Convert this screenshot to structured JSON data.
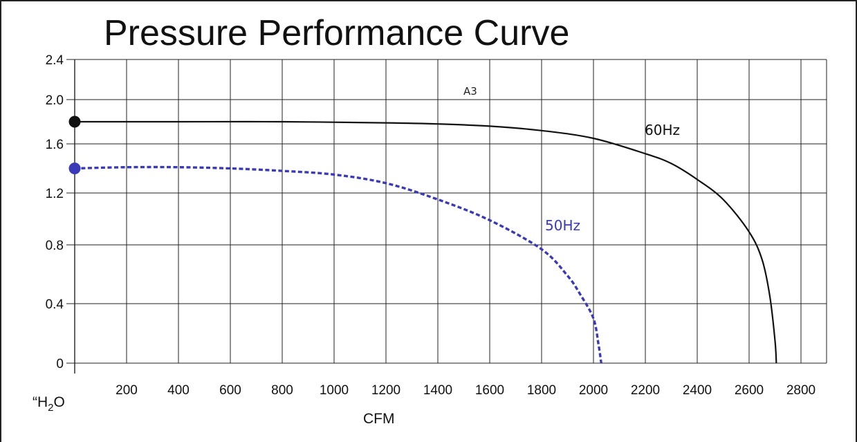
{
  "chart_data": {
    "type": "line",
    "title": "Pressure  Performance Curve",
    "xlabel": "CFM",
    "ylabel": "“H",
    "ylabel_sub": "2",
    "ylabel_suffix": "O",
    "annotation": "A3",
    "x_ticks": [
      "200",
      "400",
      "600",
      "800",
      "1000",
      "1200",
      "1400",
      "1600",
      "1800",
      "2000",
      "2200",
      "2400",
      "2600",
      "2800"
    ],
    "y_ticks": [
      "0",
      "0.4",
      "0.8",
      "1.2",
      "1.6",
      "2.0",
      "2.4"
    ],
    "xlim": [
      0,
      3000
    ],
    "ylim": [
      0,
      2.4
    ],
    "grid": true,
    "series": [
      {
        "name": "60Hz",
        "color": "#111111",
        "style": "solid",
        "marker_at_start": true,
        "points": [
          [
            0,
            1.8
          ],
          [
            400,
            1.8
          ],
          [
            800,
            1.8
          ],
          [
            1200,
            1.79
          ],
          [
            1400,
            1.78
          ],
          [
            1600,
            1.76
          ],
          [
            1800,
            1.72
          ],
          [
            2000,
            1.65
          ],
          [
            2200,
            1.52
          ],
          [
            2300,
            1.44
          ],
          [
            2400,
            1.31
          ],
          [
            2500,
            1.15
          ],
          [
            2600,
            0.9
          ],
          [
            2650,
            0.7
          ],
          [
            2680,
            0.45
          ],
          [
            2700,
            0.15
          ],
          [
            2705,
            0
          ]
        ]
      },
      {
        "name": "50Hz",
        "color": "#3a3ab8",
        "style": "dashed",
        "marker_at_start": true,
        "points": [
          [
            0,
            1.4
          ],
          [
            200,
            1.41
          ],
          [
            400,
            1.41
          ],
          [
            600,
            1.4
          ],
          [
            800,
            1.38
          ],
          [
            1000,
            1.35
          ],
          [
            1200,
            1.28
          ],
          [
            1400,
            1.15
          ],
          [
            1600,
            0.99
          ],
          [
            1800,
            0.77
          ],
          [
            1900,
            0.59
          ],
          [
            1950,
            0.46
          ],
          [
            2000,
            0.3
          ],
          [
            2020,
            0.12
          ],
          [
            2030,
            0
          ]
        ]
      }
    ]
  }
}
